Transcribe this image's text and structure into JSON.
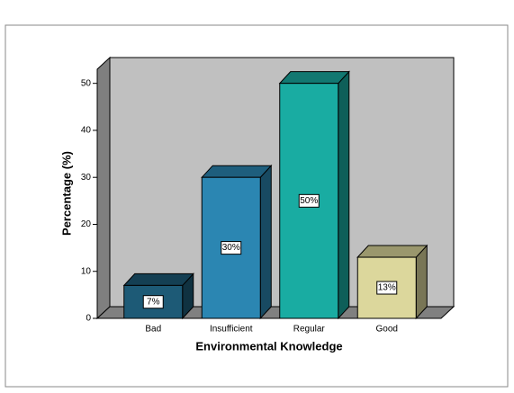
{
  "chart_data": {
    "type": "bar3d",
    "categories": [
      "Bad",
      "Insufficient",
      "Regular",
      "Good"
    ],
    "values": [
      7,
      30,
      50,
      13
    ],
    "value_labels": [
      "7%",
      "30%",
      "50%",
      "13%"
    ],
    "colors": [
      "#1d5a76",
      "#2b86b2",
      "#19aca2",
      "#dcd79c"
    ],
    "x_label": "Environmental Knowledge",
    "y_label": "Percentage (%)",
    "ylim": [
      0,
      53
    ],
    "yticks": [
      0,
      10,
      20,
      30,
      40,
      50
    ]
  }
}
